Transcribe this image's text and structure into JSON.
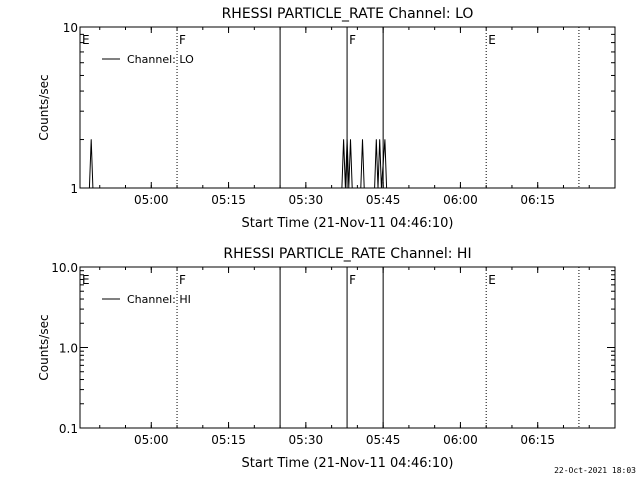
{
  "footer": "22-Oct-2021 18:03",
  "chart_data": [
    {
      "type": "line",
      "title": "RHESSI PARTICLE_RATE Channel: LO",
      "xlabel": "Start Time (21-Nov-11 04:46:10)",
      "ylabel": "Counts/sec",
      "y_scale": "log",
      "ylim": [
        1,
        10
      ],
      "xlim": [
        "04:46:10",
        "06:30:00"
      ],
      "x_ticks": [
        "05:00",
        "05:15",
        "05:30",
        "05:45",
        "06:00",
        "06:15"
      ],
      "y_ticks": [
        "1",
        "10"
      ],
      "legend": {
        "placement": "top-left",
        "entries": [
          "Channel: LO"
        ]
      },
      "series": [
        {
          "name": "Channel: LO",
          "points": [
            [
              "04:48:00",
              1
            ],
            [
              "04:48:20",
              2
            ],
            [
              "04:48:40",
              1
            ],
            [
              "05:37:00",
              1
            ],
            [
              "05:37:20",
              2
            ],
            [
              "05:37:40",
              1
            ],
            [
              "05:38:00",
              2
            ],
            [
              "05:38:20",
              1
            ],
            [
              "05:38:40",
              2
            ],
            [
              "05:39:00",
              1
            ],
            [
              "05:40:40",
              1
            ],
            [
              "05:41:00",
              2
            ],
            [
              "05:41:20",
              1
            ],
            [
              "05:43:20",
              1
            ],
            [
              "05:43:40",
              2
            ],
            [
              "05:44:00",
              1
            ],
            [
              "05:44:20",
              2
            ],
            [
              "05:44:40",
              1
            ],
            [
              "05:45:20",
              2
            ],
            [
              "05:45:40",
              1
            ]
          ]
        }
      ],
      "annotations": [
        {
          "label": "E",
          "time": "04:46:10",
          "style": "dotted"
        },
        {
          "label": "F",
          "time": "05:05:00",
          "style": "dotted"
        },
        {
          "label": "",
          "time": "05:25:00",
          "style": "solid"
        },
        {
          "label": "F",
          "time": "05:38:00",
          "style": "solid"
        },
        {
          "label": "",
          "time": "05:45:00",
          "style": "solid"
        },
        {
          "label": "E",
          "time": "06:05:00",
          "style": "dotted"
        },
        {
          "label": "",
          "time": "06:23:00",
          "style": "dotted"
        }
      ]
    },
    {
      "type": "line",
      "title": "RHESSI PARTICLE_RATE Channel: HI",
      "xlabel": "Start Time (21-Nov-11 04:46:10)",
      "ylabel": "Counts/sec",
      "y_scale": "log",
      "ylim": [
        0.1,
        10
      ],
      "xlim": [
        "04:46:10",
        "06:30:00"
      ],
      "x_ticks": [
        "05:00",
        "05:15",
        "05:30",
        "05:45",
        "06:00",
        "06:15"
      ],
      "y_ticks": [
        "0.1",
        "1.0",
        "10.0"
      ],
      "legend": {
        "placement": "top-left",
        "entries": [
          "Channel: HI"
        ]
      },
      "series": [
        {
          "name": "Channel: HI",
          "points": []
        }
      ],
      "annotations": [
        {
          "label": "E",
          "time": "04:46:10",
          "style": "dotted"
        },
        {
          "label": "F",
          "time": "05:05:00",
          "style": "dotted"
        },
        {
          "label": "",
          "time": "05:25:00",
          "style": "solid"
        },
        {
          "label": "F",
          "time": "05:38:00",
          "style": "solid"
        },
        {
          "label": "",
          "time": "05:45:00",
          "style": "solid"
        },
        {
          "label": "E",
          "time": "06:05:00",
          "style": "dotted"
        },
        {
          "label": "",
          "time": "06:23:00",
          "style": "dotted"
        }
      ]
    }
  ]
}
